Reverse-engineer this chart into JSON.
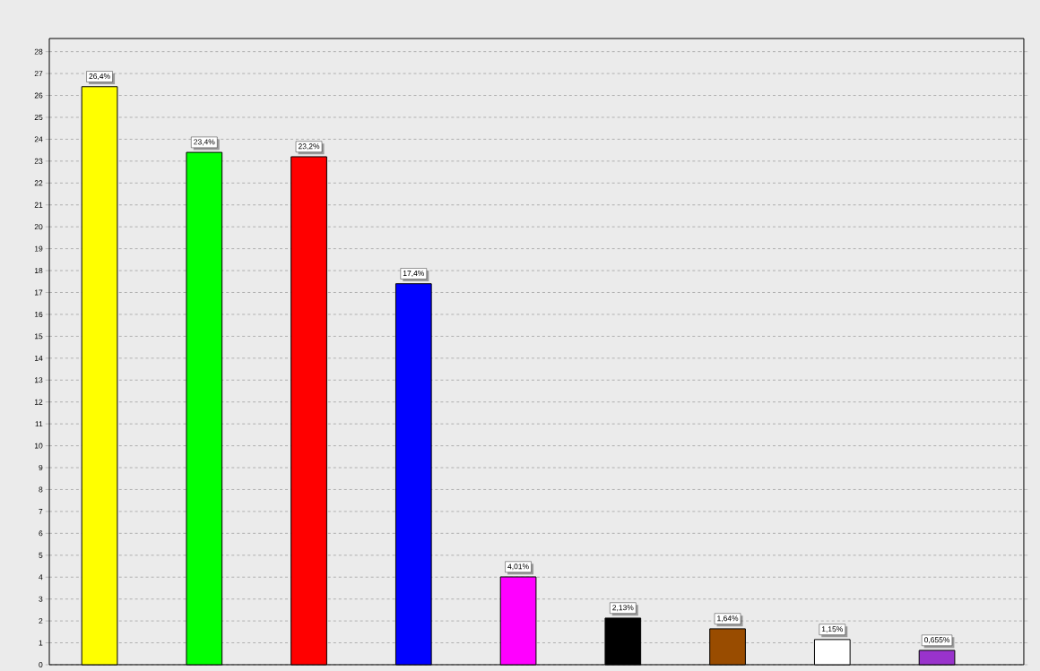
{
  "chart_data": {
    "type": "bar",
    "categories": [
      null,
      null,
      null,
      null,
      null,
      null,
      null,
      null,
      null
    ],
    "values": [
      26.4,
      23.4,
      23.2,
      17.4,
      4.01,
      2.13,
      1.64,
      1.15,
      0.655
    ],
    "value_labels": [
      "26,4%",
      "23,4%",
      "23,2%",
      "17,4%",
      "4,01%",
      "2,13%",
      "1,64%",
      "1,15%",
      "0,655%"
    ],
    "colors": [
      "#ffff00",
      "#00ff00",
      "#ff0000",
      "#0000ff",
      "#ff00ff",
      "#000000",
      "#994c00",
      "#ffffff",
      "#9933cc"
    ],
    "ylim": [
      0,
      28.6
    ],
    "yticks": [
      0,
      1,
      2,
      3,
      4,
      5,
      6,
      7,
      8,
      9,
      10,
      11,
      12,
      13,
      14,
      15,
      16,
      17,
      18,
      19,
      20,
      21,
      22,
      23,
      24,
      25,
      26,
      27,
      28
    ],
    "grid": "y"
  }
}
